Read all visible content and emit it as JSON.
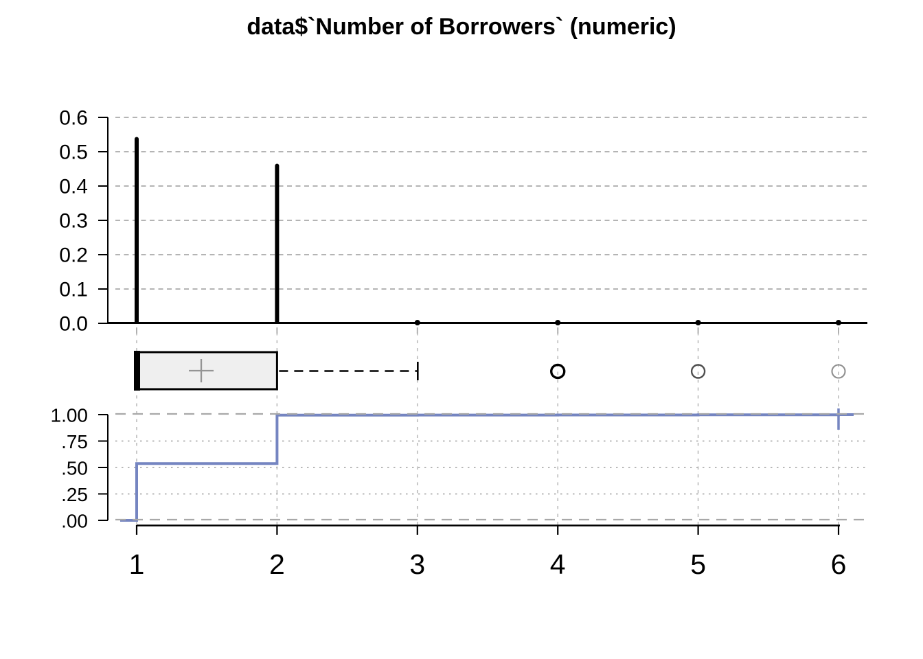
{
  "title": "data$`Number of Borrowers` (numeric)",
  "colors": {
    "foreground": "#000000",
    "ecdf_line": "#7585c1",
    "box_fill": "#efefef",
    "mean_cross": "#949494",
    "grid_h_top": "#a9a9a9",
    "grid_major": "#a8a8a8",
    "grid_minor": "#b8b8b8",
    "grid_vertical": "#c0c0c0",
    "subtick": "#b0b0b0",
    "outlier_strokes": [
      "#000000",
      "#4f4f4f",
      "#8f8f8f"
    ],
    "outlier_widths": [
      3.4,
      2.4,
      2.1
    ]
  },
  "x_axis": {
    "ticks": [
      1,
      2,
      3,
      4,
      5,
      6
    ],
    "tick_labels": [
      "1",
      "2",
      "3",
      "4",
      "5",
      "6"
    ]
  },
  "chart_data": [
    {
      "type": "bar",
      "name": "proportion-spike-plot",
      "title": "data$`Number of Borrowers` (numeric)",
      "categories": [
        1,
        2,
        3,
        4,
        5,
        6
      ],
      "values": [
        0.537,
        0.459,
        0.001,
        0.001,
        0.001,
        0.001
      ],
      "xlabel": "",
      "ylabel": "",
      "ylim": [
        0,
        0.6
      ],
      "yticks": [
        "0.0",
        "0.1",
        "0.2",
        "0.3",
        "0.4",
        "0.5",
        "0.6"
      ],
      "grid": "horizontal dashed"
    },
    {
      "type": "boxplot",
      "name": "horizontal-boxplot",
      "orientation": "horizontal",
      "min": 1,
      "q1": 1,
      "median": 1,
      "q3": 2,
      "whisker_high": 3,
      "mean": 1.46,
      "outliers": [
        4,
        5,
        6
      ]
    },
    {
      "type": "line",
      "name": "ecdf-step-plot",
      "style": "step",
      "x": [
        1,
        2,
        3,
        4,
        5,
        6
      ],
      "y": [
        0.537,
        0.995,
        0.996,
        0.997,
        0.998,
        1.0
      ],
      "xlim": [
        1,
        6
      ],
      "ylim": [
        0,
        1
      ],
      "yticks": [
        "1.00",
        ".75",
        ".50",
        ".25",
        ".00"
      ],
      "grid": "dashed major at 0 and 1, dotted minor"
    }
  ]
}
